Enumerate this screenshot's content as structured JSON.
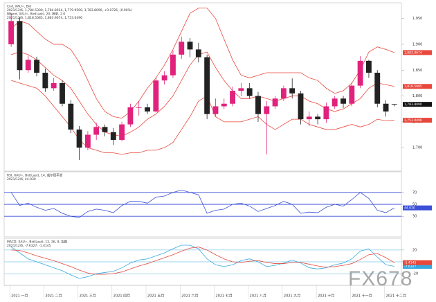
{
  "watermark": "FX678",
  "chart_data": [
    {
      "type": "candlestick",
      "legend": [
        "Cnd, XAU=, Bid",
        "2021/12/6, 1,784.5300, 1,784.8934, 1,779.9500, 1,783.8090, +0.0726, (0.00%)",
        "BBand, XAU=, Bid(Last), 20, 简单, 2.0",
        "2021/12/6, 1,818.5085, 1,883.9674, 1,753.0496"
      ],
      "categories": [
        "2021 一月",
        null,
        null,
        null,
        "2021 二月",
        null,
        null,
        null,
        "2021 三月",
        null,
        null,
        null,
        "2021 四月",
        null,
        null,
        null,
        "2021 五月",
        null,
        null,
        null,
        "2021 六月",
        null,
        null,
        null,
        "2021 七月",
        null,
        null,
        null,
        "2021 八月",
        null,
        null,
        null,
        "2021 九月",
        null,
        null,
        null,
        "2021 十月",
        null,
        null,
        null,
        "2021 十一月",
        null,
        null,
        null,
        "2021 十二月",
        null
      ],
      "open": [
        1900,
        1945,
        1850,
        1870,
        1845,
        1815,
        1825,
        1785,
        1735,
        1700,
        1725,
        1740,
        1730,
        1715,
        1745,
        1778,
        1778,
        1770,
        1830,
        1840,
        1880,
        1905,
        1890,
        1875,
        1765,
        1780,
        1785,
        1810,
        1815,
        1800,
        1765,
        1780,
        1795,
        1815,
        1805,
        1755,
        1760,
        1755,
        1780,
        1795,
        1785,
        1820,
        1868,
        1845,
        1785,
        1784.53
      ],
      "high": [
        1960,
        1952,
        1878,
        1876,
        1853,
        1835,
        1830,
        1792,
        1742,
        1732,
        1748,
        1745,
        1738,
        1750,
        1785,
        1790,
        1785,
        1836,
        1848,
        1888,
        1915,
        1912,
        1903,
        1880,
        1795,
        1795,
        1818,
        1825,
        1825,
        1808,
        1790,
        1800,
        1820,
        1834,
        1810,
        1770,
        1765,
        1787,
        1800,
        1800,
        1825,
        1877,
        1870,
        1850,
        1792,
        1784.8934
      ],
      "low": [
        1895,
        1832,
        1845,
        1838,
        1808,
        1810,
        1780,
        1728,
        1676,
        1695,
        1715,
        1722,
        1705,
        1712,
        1740,
        1762,
        1765,
        1768,
        1822,
        1835,
        1872,
        1875,
        1865,
        1755,
        1760,
        1775,
        1780,
        1800,
        1795,
        1750,
        1687,
        1775,
        1790,
        1795,
        1745,
        1742,
        1745,
        1748,
        1775,
        1777,
        1780,
        1815,
        1835,
        1778,
        1760,
        1779.95
      ],
      "close": [
        1945,
        1850,
        1870,
        1845,
        1815,
        1825,
        1785,
        1735,
        1700,
        1725,
        1740,
        1730,
        1715,
        1745,
        1778,
        1778,
        1770,
        1830,
        1840,
        1880,
        1905,
        1890,
        1875,
        1765,
        1780,
        1785,
        1810,
        1815,
        1800,
        1765,
        1780,
        1795,
        1815,
        1805,
        1755,
        1760,
        1755,
        1780,
        1795,
        1785,
        1820,
        1868,
        1845,
        1785,
        1770,
        1783.809
      ],
      "close_last_label": "1,783.8090",
      "up_color": "#e0227c",
      "down_color": "#222222",
      "series": [
        {
          "values": [
            1880,
            1885,
            1880,
            1870,
            1855,
            1840,
            1830,
            1815,
            1790,
            1765,
            1745,
            1730,
            1725,
            1722,
            1730,
            1740,
            1755,
            1765,
            1780,
            1800,
            1830,
            1860,
            1880,
            1885,
            1855,
            1830,
            1810,
            1795,
            1795,
            1800,
            1795,
            1790,
            1795,
            1800,
            1800,
            1790,
            1785,
            1775,
            1770,
            1775,
            1785,
            1795,
            1815,
            1825,
            1822,
            1818.5085
          ],
          "color": "#e8483c",
          "last_label": "1,818.5085"
        },
        {
          "values": [
            1930,
            1945,
            1940,
            1925,
            1910,
            1900,
            1900,
            1890,
            1865,
            1830,
            1795,
            1770,
            1760,
            1757,
            1770,
            1790,
            1815,
            1835,
            1860,
            1890,
            1925,
            1960,
            1970,
            1970,
            1950,
            1910,
            1870,
            1840,
            1835,
            1840,
            1845,
            1845,
            1845,
            1845,
            1845,
            1835,
            1830,
            1815,
            1805,
            1810,
            1825,
            1850,
            1885,
            1895,
            1890,
            1883.9674
          ],
          "color": "#e8483c",
          "last_label": "1,883.9674"
        },
        {
          "values": [
            1830,
            1825,
            1820,
            1815,
            1800,
            1780,
            1760,
            1740,
            1715,
            1700,
            1695,
            1690,
            1690,
            1687,
            1690,
            1690,
            1695,
            1695,
            1700,
            1710,
            1735,
            1760,
            1790,
            1800,
            1760,
            1750,
            1750,
            1750,
            1755,
            1760,
            1745,
            1735,
            1745,
            1755,
            1755,
            1745,
            1740,
            1735,
            1735,
            1740,
            1745,
            1740,
            1745,
            1755,
            1752,
            1753.0496
          ],
          "color": "#e8483c",
          "last_label": "1,753.0496"
        }
      ],
      "ylim": [
        1660,
        1975
      ],
      "yticks": [
        {
          "value": 1700,
          "label": "1,700"
        },
        {
          "value": 1750,
          "label": "1,750"
        },
        {
          "value": 1800,
          "label": "1,800"
        },
        {
          "value": 1850,
          "label": "1,850"
        },
        {
          "value": 1900,
          "label": "1,900"
        },
        {
          "value": 1950,
          "label": "1,950"
        }
      ],
      "grid": false
    },
    {
      "type": "line",
      "legend": [
        "RSI, XAU=, Bid(Last), 14, 威尔德平滑",
        "2021/12/6, 44.030"
      ],
      "series": [
        {
          "values": [
            70,
            48,
            52,
            45,
            40,
            43,
            35,
            30,
            28,
            38,
            42,
            40,
            36,
            48,
            55,
            55,
            52,
            62,
            64,
            70,
            74,
            70,
            66,
            35,
            40,
            42,
            50,
            52,
            47,
            38,
            43,
            48,
            55,
            50,
            35,
            37,
            36,
            45,
            50,
            47,
            58,
            70,
            60,
            40,
            36,
            44.03
          ],
          "color": "#3b4fd8",
          "last_label": "44.030"
        }
      ],
      "ylim": [
        0,
        100
      ],
      "yticks": [
        30,
        50,
        70
      ],
      "grid": true,
      "grid_color": "#3b4fd8"
    },
    {
      "type": "line",
      "legend": [
        "MACD, XAU=, Bid(Last), 12, 26, 9, 指数",
        "2021/12/6, -7.6327, -1.4145"
      ],
      "series": [
        {
          "values": [
            25,
            15,
            5,
            0,
            -5,
            -10,
            -15,
            -22,
            -28,
            -25,
            -20,
            -18,
            -16,
            -10,
            -2,
            3,
            5,
            10,
            15,
            22,
            28,
            28,
            22,
            5,
            -5,
            -8,
            -5,
            2,
            5,
            0,
            -8,
            -6,
            -2,
            3,
            -2,
            -10,
            -12,
            -10,
            -5,
            -2,
            5,
            18,
            22,
            8,
            -5,
            -7.6327
          ],
          "color": "#35a8e0"
        },
        {
          "values": [
            20,
            19,
            15,
            10,
            6,
            2,
            -3,
            -8,
            -14,
            -19,
            -21,
            -21,
            -20,
            -17,
            -12,
            -7,
            -3,
            2,
            7,
            12,
            18,
            23,
            25,
            20,
            12,
            5,
            0,
            -1,
            1,
            2,
            -1,
            -3,
            -3,
            -1,
            -1,
            -4,
            -7,
            -9,
            -8,
            -6,
            -3,
            4,
            12,
            14,
            7,
            -1.4145
          ],
          "color": "#e8483c"
        }
      ],
      "ylim": [
        -35,
        35
      ],
      "yticks": [
        -20,
        0,
        20
      ],
      "grid": true,
      "grid_color": "#9fd3ee"
    }
  ]
}
